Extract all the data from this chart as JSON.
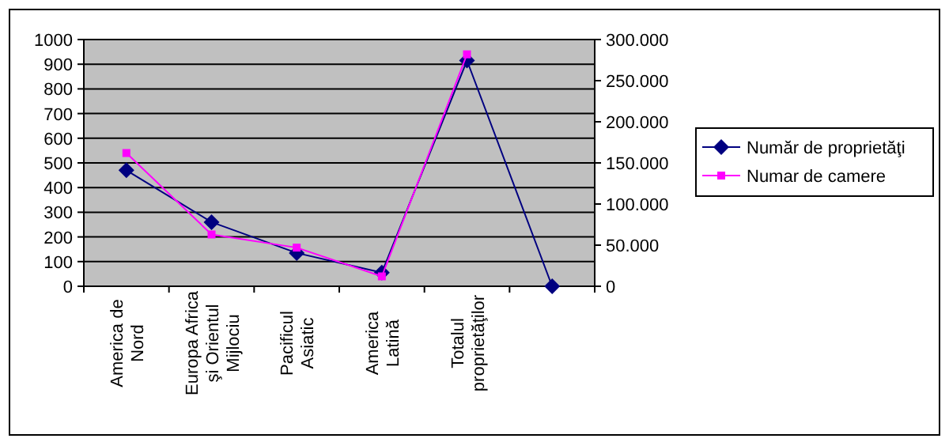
{
  "chart_data": {
    "type": "line",
    "categories": [
      "America de Nord",
      "Europa Africa şi Orientul Mijlociu",
      "Pacificul Asiatic",
      "America Latină",
      "Totalul proprietăţilor",
      null
    ],
    "series": [
      {
        "name": "Număr de proprietăţi",
        "color": "#000080",
        "marker": "diamond",
        "values": [
          470,
          260,
          135,
          55,
          915,
          0
        ]
      },
      {
        "name": "Numar de camere",
        "color": "#ff00ff",
        "marker": "square",
        "axis": "y2",
        "values": [
          162000,
          63000,
          47000,
          12000,
          282000,
          null
        ]
      }
    ],
    "ylim": [
      0,
      1000
    ],
    "yticks": [
      0,
      100,
      200,
      300,
      400,
      500,
      600,
      700,
      800,
      900,
      1000
    ],
    "y2lim": [
      0,
      300000
    ],
    "y2ticks": [
      {
        "value": 0,
        "label": "0"
      },
      {
        "value": 50000,
        "label": "50.000"
      },
      {
        "value": 100000,
        "label": "100.000"
      },
      {
        "value": 150000,
        "label": "150.000"
      },
      {
        "value": 200000,
        "label": "200.000"
      },
      {
        "value": 250000,
        "label": "250.000"
      },
      {
        "value": 300000,
        "label": "300.000"
      }
    ],
    "grid": "y",
    "legend": "right"
  }
}
